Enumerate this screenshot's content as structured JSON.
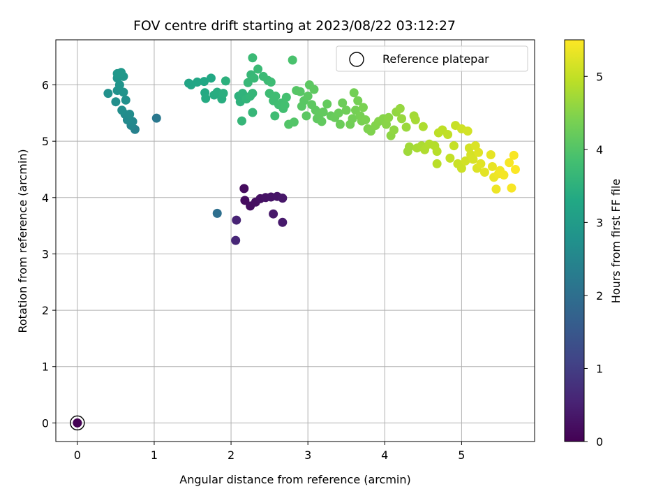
{
  "chart_data": {
    "type": "scatter",
    "title": "FOV centre drift starting at 2023/08/22 03:12:27",
    "xlabel": "Angular distance from reference (arcmin)",
    "ylabel": "Rotation from reference (arcmin)",
    "xlim": [
      -0.28,
      5.95
    ],
    "ylim": [
      -0.33,
      6.8
    ],
    "xticks": [
      "0",
      "1",
      "2",
      "3",
      "4",
      "5"
    ],
    "yticks": [
      "0",
      "1",
      "2",
      "3",
      "4",
      "5",
      "6"
    ],
    "grid": true,
    "legend": {
      "position": "top-right",
      "entries": [
        "Reference platepar"
      ]
    },
    "colorbar": {
      "label": "Hours from first FF file",
      "colormap": "viridis",
      "range": [
        0,
        5.5
      ],
      "ticks": [
        "0",
        "1",
        "2",
        "3",
        "4",
        "5"
      ]
    },
    "reference_point": {
      "x": 0,
      "y": 0
    },
    "points": [
      {
        "x": 0.0,
        "y": 0.0,
        "t": 0.0
      },
      {
        "x": 2.17,
        "y": 4.16,
        "t": 0.15
      },
      {
        "x": 2.18,
        "y": 3.95,
        "t": 0.18
      },
      {
        "x": 2.25,
        "y": 3.85,
        "t": 0.2
      },
      {
        "x": 2.32,
        "y": 3.92,
        "t": 0.22
      },
      {
        "x": 2.38,
        "y": 3.98,
        "t": 0.25
      },
      {
        "x": 2.45,
        "y": 4.0,
        "t": 0.28
      },
      {
        "x": 2.52,
        "y": 4.01,
        "t": 0.3
      },
      {
        "x": 2.6,
        "y": 4.02,
        "t": 0.32
      },
      {
        "x": 2.67,
        "y": 3.99,
        "t": 0.35
      },
      {
        "x": 2.55,
        "y": 3.71,
        "t": 0.37
      },
      {
        "x": 2.67,
        "y": 3.56,
        "t": 0.4
      },
      {
        "x": 2.07,
        "y": 3.6,
        "t": 0.55
      },
      {
        "x": 2.06,
        "y": 3.24,
        "t": 0.6
      },
      {
        "x": 1.82,
        "y": 3.72,
        "t": 2.0
      },
      {
        "x": 1.03,
        "y": 5.41,
        "t": 2.2
      },
      {
        "x": 0.75,
        "y": 5.21,
        "t": 2.4
      },
      {
        "x": 0.7,
        "y": 5.28,
        "t": 2.5
      },
      {
        "x": 0.72,
        "y": 5.35,
        "t": 2.55
      },
      {
        "x": 0.65,
        "y": 5.38,
        "t": 2.6
      },
      {
        "x": 0.62,
        "y": 5.48,
        "t": 2.62
      },
      {
        "x": 0.68,
        "y": 5.48,
        "t": 2.65
      },
      {
        "x": 0.58,
        "y": 5.55,
        "t": 2.68
      },
      {
        "x": 0.5,
        "y": 5.7,
        "t": 2.7
      },
      {
        "x": 0.63,
        "y": 5.73,
        "t": 2.72
      },
      {
        "x": 0.4,
        "y": 5.85,
        "t": 2.75
      },
      {
        "x": 0.52,
        "y": 5.9,
        "t": 2.78
      },
      {
        "x": 0.6,
        "y": 5.87,
        "t": 2.8
      },
      {
        "x": 0.55,
        "y": 6.0,
        "t": 2.82
      },
      {
        "x": 0.52,
        "y": 6.12,
        "t": 2.85
      },
      {
        "x": 0.6,
        "y": 6.15,
        "t": 2.88
      },
      {
        "x": 0.52,
        "y": 6.2,
        "t": 2.9
      },
      {
        "x": 0.57,
        "y": 6.22,
        "t": 2.92
      },
      {
        "x": 1.45,
        "y": 6.03,
        "t": 3.2
      },
      {
        "x": 1.48,
        "y": 6.0,
        "t": 3.22
      },
      {
        "x": 1.56,
        "y": 6.05,
        "t": 3.25
      },
      {
        "x": 1.65,
        "y": 6.06,
        "t": 3.28
      },
      {
        "x": 1.74,
        "y": 6.12,
        "t": 3.3
      },
      {
        "x": 1.66,
        "y": 5.86,
        "t": 3.32
      },
      {
        "x": 1.67,
        "y": 5.76,
        "t": 3.35
      },
      {
        "x": 1.78,
        "y": 5.82,
        "t": 3.38
      },
      {
        "x": 1.82,
        "y": 5.87,
        "t": 3.4
      },
      {
        "x": 1.88,
        "y": 5.75,
        "t": 3.42
      },
      {
        "x": 1.9,
        "y": 5.85,
        "t": 3.45
      },
      {
        "x": 1.93,
        "y": 6.07,
        "t": 3.48
      },
      {
        "x": 2.1,
        "y": 5.8,
        "t": 3.5
      },
      {
        "x": 2.12,
        "y": 5.7,
        "t": 3.52
      },
      {
        "x": 2.15,
        "y": 5.85,
        "t": 3.55
      },
      {
        "x": 2.2,
        "y": 5.75,
        "t": 3.58
      },
      {
        "x": 2.25,
        "y": 5.8,
        "t": 3.6
      },
      {
        "x": 2.28,
        "y": 5.85,
        "t": 3.62
      },
      {
        "x": 2.14,
        "y": 5.36,
        "t": 3.62
      },
      {
        "x": 2.28,
        "y": 5.51,
        "t": 3.64
      },
      {
        "x": 2.22,
        "y": 6.04,
        "t": 3.65
      },
      {
        "x": 2.26,
        "y": 6.18,
        "t": 3.66
      },
      {
        "x": 2.3,
        "y": 6.12,
        "t": 3.68
      },
      {
        "x": 2.35,
        "y": 6.28,
        "t": 3.7
      },
      {
        "x": 2.28,
        "y": 6.48,
        "t": 3.7
      },
      {
        "x": 2.42,
        "y": 6.15,
        "t": 3.72
      },
      {
        "x": 2.48,
        "y": 6.08,
        "t": 3.74
      },
      {
        "x": 2.52,
        "y": 6.05,
        "t": 3.75
      },
      {
        "x": 2.5,
        "y": 5.85,
        "t": 3.76
      },
      {
        "x": 2.55,
        "y": 5.72,
        "t": 3.78
      },
      {
        "x": 2.58,
        "y": 5.8,
        "t": 3.78
      },
      {
        "x": 2.62,
        "y": 5.65,
        "t": 3.8
      },
      {
        "x": 2.66,
        "y": 5.68,
        "t": 3.82
      },
      {
        "x": 2.68,
        "y": 5.58,
        "t": 3.82
      },
      {
        "x": 2.7,
        "y": 5.64,
        "t": 3.84
      },
      {
        "x": 2.72,
        "y": 5.78,
        "t": 3.85
      },
      {
        "x": 2.57,
        "y": 5.45,
        "t": 3.78
      },
      {
        "x": 2.8,
        "y": 6.44,
        "t": 3.9
      },
      {
        "x": 2.75,
        "y": 5.3,
        "t": 4.0
      },
      {
        "x": 2.82,
        "y": 5.34,
        "t": 4.0
      },
      {
        "x": 2.85,
        "y": 5.9,
        "t": 4.02
      },
      {
        "x": 2.9,
        "y": 5.88,
        "t": 4.04
      },
      {
        "x": 2.92,
        "y": 5.62,
        "t": 4.05
      },
      {
        "x": 2.95,
        "y": 5.72,
        "t": 4.06
      },
      {
        "x": 2.98,
        "y": 5.45,
        "t": 4.08
      },
      {
        "x": 3.0,
        "y": 5.8,
        "t": 4.09
      },
      {
        "x": 3.02,
        "y": 6.0,
        "t": 4.1
      },
      {
        "x": 3.05,
        "y": 5.65,
        "t": 4.11
      },
      {
        "x": 3.08,
        "y": 5.92,
        "t": 4.12
      },
      {
        "x": 3.1,
        "y": 5.55,
        "t": 4.13
      },
      {
        "x": 3.12,
        "y": 5.4,
        "t": 4.14
      },
      {
        "x": 3.15,
        "y": 5.48,
        "t": 4.15
      },
      {
        "x": 3.18,
        "y": 5.35,
        "t": 4.16
      },
      {
        "x": 3.2,
        "y": 5.52,
        "t": 4.17
      },
      {
        "x": 3.25,
        "y": 5.66,
        "t": 4.18
      },
      {
        "x": 3.3,
        "y": 5.45,
        "t": 4.2
      },
      {
        "x": 3.35,
        "y": 5.42,
        "t": 4.22
      },
      {
        "x": 3.4,
        "y": 5.5,
        "t": 4.24
      },
      {
        "x": 3.42,
        "y": 5.3,
        "t": 4.25
      },
      {
        "x": 3.45,
        "y": 5.68,
        "t": 4.26
      },
      {
        "x": 3.5,
        "y": 5.55,
        "t": 4.28
      },
      {
        "x": 3.55,
        "y": 5.3,
        "t": 4.3
      },
      {
        "x": 3.58,
        "y": 5.4,
        "t": 4.32
      },
      {
        "x": 3.6,
        "y": 5.86,
        "t": 4.33
      },
      {
        "x": 3.62,
        "y": 5.55,
        "t": 4.34
      },
      {
        "x": 3.65,
        "y": 5.72,
        "t": 4.35
      },
      {
        "x": 3.68,
        "y": 5.45,
        "t": 4.36
      },
      {
        "x": 3.7,
        "y": 5.36,
        "t": 4.38
      },
      {
        "x": 3.72,
        "y": 5.6,
        "t": 4.39
      },
      {
        "x": 3.75,
        "y": 5.38,
        "t": 4.4
      },
      {
        "x": 3.78,
        "y": 5.22,
        "t": 4.42
      },
      {
        "x": 3.82,
        "y": 5.18,
        "t": 4.44
      },
      {
        "x": 3.88,
        "y": 5.28,
        "t": 4.46
      },
      {
        "x": 3.92,
        "y": 5.35,
        "t": 4.48
      },
      {
        "x": 3.98,
        "y": 5.4,
        "t": 4.5
      },
      {
        "x": 4.02,
        "y": 5.3,
        "t": 4.52
      },
      {
        "x": 4.05,
        "y": 5.42,
        "t": 4.54
      },
      {
        "x": 4.08,
        "y": 5.1,
        "t": 4.56
      },
      {
        "x": 4.12,
        "y": 5.2,
        "t": 4.58
      },
      {
        "x": 4.15,
        "y": 5.52,
        "t": 4.6
      },
      {
        "x": 4.2,
        "y": 5.58,
        "t": 4.62
      },
      {
        "x": 4.22,
        "y": 5.4,
        "t": 4.64
      },
      {
        "x": 4.28,
        "y": 5.25,
        "t": 4.66
      },
      {
        "x": 4.3,
        "y": 4.82,
        "t": 4.7
      },
      {
        "x": 4.32,
        "y": 4.9,
        "t": 4.72
      },
      {
        "x": 4.38,
        "y": 5.45,
        "t": 4.74
      },
      {
        "x": 4.4,
        "y": 5.38,
        "t": 4.76
      },
      {
        "x": 4.42,
        "y": 4.88,
        "t": 4.78
      },
      {
        "x": 4.48,
        "y": 4.92,
        "t": 4.8
      },
      {
        "x": 4.5,
        "y": 5.26,
        "t": 4.82
      },
      {
        "x": 4.52,
        "y": 4.85,
        "t": 4.84
      },
      {
        "x": 4.58,
        "y": 4.95,
        "t": 4.86
      },
      {
        "x": 4.65,
        "y": 4.92,
        "t": 4.88
      },
      {
        "x": 4.68,
        "y": 4.82,
        "t": 4.9
      },
      {
        "x": 4.68,
        "y": 4.6,
        "t": 4.92
      },
      {
        "x": 4.7,
        "y": 5.15,
        "t": 4.94
      },
      {
        "x": 4.75,
        "y": 5.2,
        "t": 4.96
      },
      {
        "x": 4.82,
        "y": 5.12,
        "t": 4.98
      },
      {
        "x": 4.85,
        "y": 4.7,
        "t": 5.0
      },
      {
        "x": 4.9,
        "y": 4.92,
        "t": 5.02
      },
      {
        "x": 4.92,
        "y": 5.28,
        "t": 5.04
      },
      {
        "x": 4.95,
        "y": 4.6,
        "t": 5.06
      },
      {
        "x": 5.0,
        "y": 4.52,
        "t": 5.08
      },
      {
        "x": 5.0,
        "y": 5.22,
        "t": 5.1
      },
      {
        "x": 5.05,
        "y": 4.65,
        "t": 5.12
      },
      {
        "x": 5.08,
        "y": 5.18,
        "t": 5.13
      },
      {
        "x": 5.1,
        "y": 4.88,
        "t": 5.14
      },
      {
        "x": 5.12,
        "y": 4.76,
        "t": 5.16
      },
      {
        "x": 5.15,
        "y": 4.68,
        "t": 5.18
      },
      {
        "x": 5.18,
        "y": 4.92,
        "t": 5.2
      },
      {
        "x": 5.2,
        "y": 4.52,
        "t": 5.22
      },
      {
        "x": 5.22,
        "y": 4.8,
        "t": 5.24
      },
      {
        "x": 5.25,
        "y": 4.6,
        "t": 5.26
      },
      {
        "x": 5.3,
        "y": 4.45,
        "t": 5.28
      },
      {
        "x": 5.38,
        "y": 4.76,
        "t": 5.3
      },
      {
        "x": 5.4,
        "y": 4.55,
        "t": 5.32
      },
      {
        "x": 5.42,
        "y": 4.36,
        "t": 5.34
      },
      {
        "x": 5.45,
        "y": 4.15,
        "t": 5.36
      },
      {
        "x": 5.48,
        "y": 4.42,
        "t": 5.38
      },
      {
        "x": 5.5,
        "y": 4.48,
        "t": 5.4
      },
      {
        "x": 5.55,
        "y": 4.4,
        "t": 5.42
      },
      {
        "x": 5.62,
        "y": 4.62,
        "t": 5.44
      },
      {
        "x": 5.65,
        "y": 4.17,
        "t": 5.45
      },
      {
        "x": 5.68,
        "y": 4.75,
        "t": 5.46
      },
      {
        "x": 5.7,
        "y": 4.5,
        "t": 5.48
      }
    ]
  }
}
